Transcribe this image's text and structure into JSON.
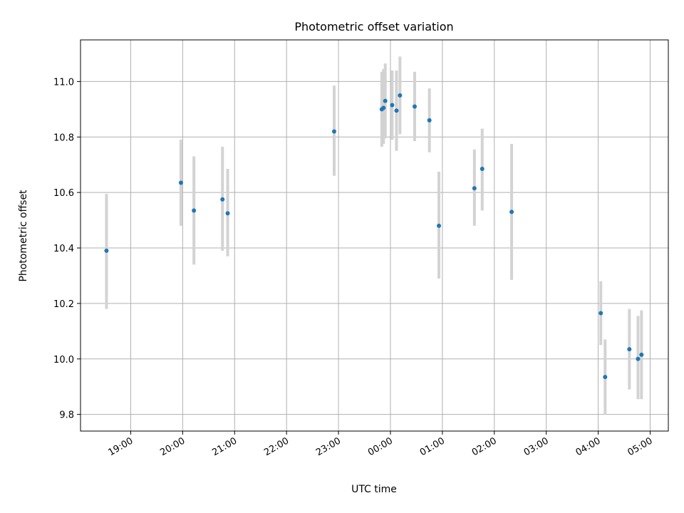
{
  "chart_data": {
    "type": "scatter",
    "title": "Photometric offset variation",
    "xlabel": "UTC time",
    "ylabel": "Photometric offset",
    "x_ticks": [
      "19:00",
      "20:00",
      "21:00",
      "22:00",
      "23:00",
      "00:00",
      "01:00",
      "02:00",
      "03:00",
      "04:00",
      "05:00"
    ],
    "y_ticks": [
      "9.8",
      "10.0",
      "10.2",
      "10.4",
      "10.6",
      "10.8",
      "11.0"
    ],
    "xlim": [
      "18:02",
      "05:21"
    ],
    "ylim": [
      9.74,
      11.15
    ],
    "grid": true,
    "marker_color": "#1f77b4",
    "errorbar_color": "#d3d3d3",
    "points": [
      {
        "x": "18:32",
        "y": 10.39,
        "low": 10.18,
        "high": 10.595
      },
      {
        "x": "19:58",
        "y": 10.635,
        "low": 10.48,
        "high": 10.79
      },
      {
        "x": "20:13",
        "y": 10.535,
        "low": 10.34,
        "high": 10.73
      },
      {
        "x": "20:46",
        "y": 10.575,
        "low": 10.39,
        "high": 10.765
      },
      {
        "x": "20:52",
        "y": 10.525,
        "low": 10.37,
        "high": 10.685
      },
      {
        "x": "22:55",
        "y": 10.82,
        "low": 10.66,
        "high": 10.985
      },
      {
        "x": "23:50",
        "y": 10.9,
        "low": 10.765,
        "high": 11.035
      },
      {
        "x": "23:52",
        "y": 10.905,
        "low": 10.775,
        "high": 11.045
      },
      {
        "x": "23:54",
        "y": 10.93,
        "low": 10.795,
        "high": 11.065
      },
      {
        "x": "00:02",
        "y": 10.915,
        "low": 10.79,
        "high": 11.04
      },
      {
        "x": "00:07",
        "y": 10.895,
        "low": 10.75,
        "high": 11.04
      },
      {
        "x": "00:11",
        "y": 10.95,
        "low": 10.81,
        "high": 11.09
      },
      {
        "x": "00:28",
        "y": 10.91,
        "low": 10.785,
        "high": 11.035
      },
      {
        "x": "00:45",
        "y": 10.86,
        "low": 10.745,
        "high": 10.975
      },
      {
        "x": "00:56",
        "y": 10.48,
        "low": 10.29,
        "high": 10.675
      },
      {
        "x": "01:37",
        "y": 10.615,
        "low": 10.48,
        "high": 10.755
      },
      {
        "x": "01:46",
        "y": 10.685,
        "low": 10.535,
        "high": 10.83
      },
      {
        "x": "02:20",
        "y": 10.53,
        "low": 10.285,
        "high": 10.775
      },
      {
        "x": "04:03",
        "y": 10.165,
        "low": 10.05,
        "high": 10.28
      },
      {
        "x": "04:08",
        "y": 9.935,
        "low": 9.8,
        "high": 10.07
      },
      {
        "x": "04:36",
        "y": 10.035,
        "low": 9.89,
        "high": 10.18
      },
      {
        "x": "04:46",
        "y": 10.0,
        "low": 9.855,
        "high": 10.155
      },
      {
        "x": "04:50",
        "y": 10.015,
        "low": 9.855,
        "high": 10.175
      }
    ]
  }
}
